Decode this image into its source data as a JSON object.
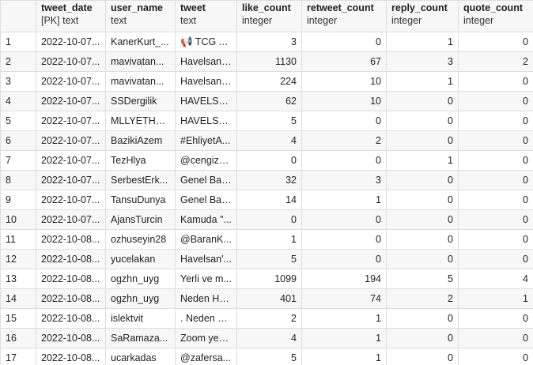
{
  "columns": [
    {
      "name": "",
      "type": ""
    },
    {
      "name": "tweet_date",
      "type": "[PK] text"
    },
    {
      "name": "user_name",
      "type": "text"
    },
    {
      "name": "tweet",
      "type": "text"
    },
    {
      "name": "like_count",
      "type": "integer"
    },
    {
      "name": "retweet_count",
      "type": "integer"
    },
    {
      "name": "reply_count",
      "type": "integer"
    },
    {
      "name": "quote_count",
      "type": "integer"
    }
  ],
  "rows": [
    [
      "1",
      "2022-10-07...",
      "KanerKurt_...",
      "📢 TCG A...",
      "3",
      "0",
      "1",
      "0"
    ],
    [
      "2",
      "2022-10-07...",
      "mavivatan...",
      "Havelsan ...",
      "1130",
      "67",
      "3",
      "2"
    ],
    [
      "3",
      "2022-10-07...",
      "mavivatan...",
      "Havelsan ...",
      "224",
      "10",
      "1",
      "0"
    ],
    [
      "4",
      "2022-10-07...",
      "SSDergilik",
      "HAVELSA...",
      "62",
      "10",
      "0",
      "0"
    ],
    [
      "5",
      "2022-10-07...",
      "MLLYETHA...",
      "HAVELSA...",
      "5",
      "0",
      "0",
      "0"
    ],
    [
      "6",
      "2022-10-07...",
      "BazikiAzem",
      "#EhliyetA...",
      "4",
      "2",
      "0",
      "0"
    ],
    [
      "7",
      "2022-10-07...",
      "TezHlya",
      "@cengiza...",
      "0",
      "0",
      "1",
      "0"
    ],
    [
      "8",
      "2022-10-07...",
      "SerbestErk...",
      "Genel Baş...",
      "32",
      "3",
      "0",
      "0"
    ],
    [
      "9",
      "2022-10-07...",
      "TansuDunya",
      "Genel Baş...",
      "14",
      "1",
      "0",
      "0"
    ],
    [
      "10",
      "2022-10-07...",
      "AjansTurcin",
      "Kamuda \"...",
      "0",
      "0",
      "0",
      "0"
    ],
    [
      "11",
      "2022-10-08...",
      "ozhuseyin28",
      "@BaranK...",
      "1",
      "0",
      "0",
      "0"
    ],
    [
      "12",
      "2022-10-08...",
      "yucelakan",
      "Havelsan'...",
      "5",
      "0",
      "0",
      "0"
    ],
    [
      "13",
      "2022-10-08...",
      "ogzhn_uyg",
      "Yerli ve m...",
      "1099",
      "194",
      "5",
      "4"
    ],
    [
      "14",
      "2022-10-08...",
      "ogzhn_uyg",
      "Neden HA...",
      "401",
      "74",
      "2",
      "1"
    ],
    [
      "15",
      "2022-10-08...",
      "islektvit",
      ". Neden H...",
      "2",
      "1",
      "0",
      "0"
    ],
    [
      "16",
      "2022-10-08...",
      "SaRamaza...",
      "Zoom yeri...",
      "4",
      "1",
      "0",
      "0"
    ],
    [
      "17",
      "2022-10-08...",
      "ucarkadas",
      "@zafersa...",
      "5",
      "1",
      "0",
      "0"
    ]
  ]
}
